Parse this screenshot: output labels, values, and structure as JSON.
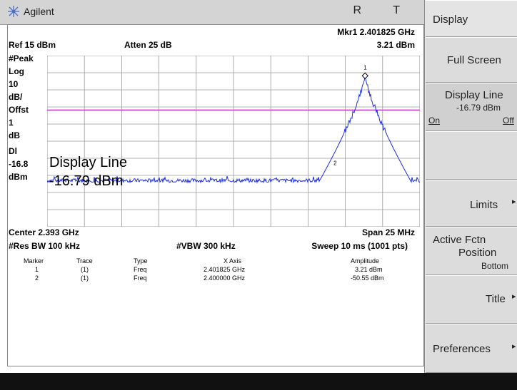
{
  "titlebar": {
    "logo": "Agilent",
    "indicators": "R  T"
  },
  "header": {
    "marker_readout": "Mkr1  2.401825 GHz",
    "ref": "Ref 15 dBm",
    "atten": "Atten 25 dB",
    "marker_amp": "3.21 dBm"
  },
  "left_labels": [
    "#Peak",
    "Log",
    "10",
    "dB/",
    "Offst",
    "1",
    "dB",
    "Dl",
    "-16.8",
    "dBm"
  ],
  "display_line_text": {
    "line1": "Display Line",
    "line2": "-16.79 dBm"
  },
  "footer": {
    "center": "Center 2.393 GHz",
    "span": "Span 25 MHz",
    "rbw": "#Res BW 100 kHz",
    "vbw": "#VBW 300 kHz",
    "sweep": "Sweep 10 ms (1001 pts)"
  },
  "marker_table": {
    "headers": [
      "Marker",
      "Trace",
      "Type",
      "X Axis",
      "Amplitude"
    ],
    "rows": [
      [
        "1",
        "(1)",
        "Freq",
        "2.401825 GHz",
        "3.21 dBm"
      ],
      [
        "2",
        "(1)",
        "Freq",
        "2.400000 GHz",
        "-50.55 dBm"
      ]
    ]
  },
  "softkeys": {
    "title": "Display",
    "full_screen": "Full Screen",
    "display_line": "Display Line",
    "display_line_value": "-16.79 dBm",
    "on": "On",
    "off": "Off",
    "limits": "Limits",
    "active_fctn": "Active Fctn",
    "position": "Position",
    "bottom": "Bottom",
    "title_key": "Title",
    "preferences": "Preferences"
  },
  "trace": {
    "ref_level_dbm": 15,
    "scale_db_per_div": 10,
    "center_ghz": 2.393,
    "span_mhz": 25,
    "display_line_dbm": -16.79,
    "noise_floor_dbm": -58,
    "peak_freq_ghz": 2.401825,
    "peak_amp_dbm": 3.21,
    "marker2_freq_ghz": 2.4,
    "marker2_amp_dbm": -50.55
  },
  "colors": {
    "trace": "#1a2ee0",
    "display_line": "#cc33cc",
    "grid": "#9a9a9a"
  }
}
